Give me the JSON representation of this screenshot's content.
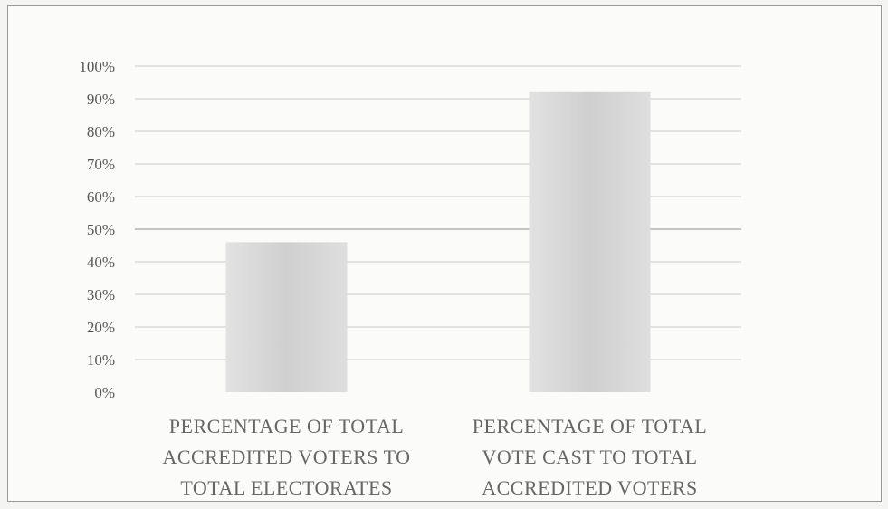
{
  "chart_data": {
    "type": "bar",
    "categories": [
      [
        "PERCENTAGE OF TOTAL",
        "ACCREDITED VOTERS TO",
        "TOTAL ELECTORATES"
      ],
      [
        "PERCENTAGE OF TOTAL",
        "VOTE CAST TO TOTAL",
        "ACCREDITED VOTERS"
      ]
    ],
    "values": [
      46,
      92
    ],
    "ylim": [
      0,
      100
    ],
    "yticks": [
      0,
      10,
      20,
      30,
      40,
      50,
      60,
      70,
      80,
      90,
      100
    ],
    "ytick_labels": [
      "0%",
      "10%",
      "20%",
      "30%",
      "40%",
      "50%",
      "60%",
      "70%",
      "80%",
      "90%",
      "100%"
    ],
    "grid": true,
    "legend": "none",
    "colors": {
      "bar": "#d6d6d6",
      "grid": "#c9c9c9"
    }
  }
}
